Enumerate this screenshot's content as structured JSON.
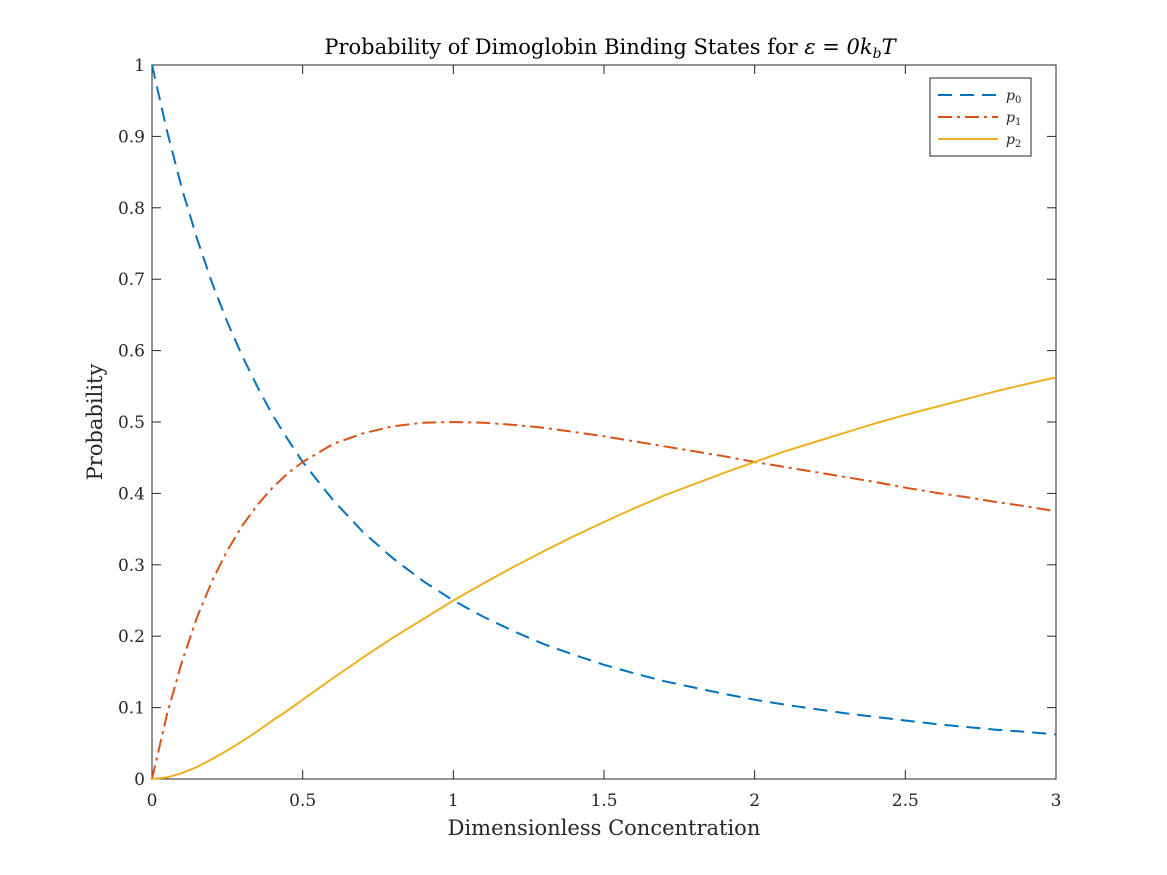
{
  "chart_data": {
    "type": "line",
    "title": "Probability of Dimoglobin Binding States for ε = 0k_bT",
    "title_parts": {
      "prefix": "Probability of Dimoglobin Binding States for ",
      "math": "ε = 0",
      "k": "k",
      "sub_b": "b",
      "T": "T"
    },
    "xlabel": "Dimensionless Concentration",
    "ylabel": "Probability",
    "xlim": [
      0,
      3
    ],
    "ylim": [
      0,
      1
    ],
    "xticks": [
      0,
      0.5,
      1,
      1.5,
      2,
      2.5,
      3
    ],
    "xtick_labels": [
      "0",
      "0.5",
      "1",
      "1.5",
      "2",
      "2.5",
      "3"
    ],
    "yticks": [
      0,
      0.1,
      0.2,
      0.3,
      0.4,
      0.5,
      0.6,
      0.7,
      0.8,
      0.9,
      1
    ],
    "ytick_labels": [
      "0",
      "0.1",
      "0.2",
      "0.3",
      "0.4",
      "0.5",
      "0.6",
      "0.7",
      "0.8",
      "0.9",
      "1"
    ],
    "grid": false,
    "legend_position": "top-right",
    "x": [
      0,
      0.05,
      0.1,
      0.15,
      0.2,
      0.25,
      0.3,
      0.35,
      0.4,
      0.45,
      0.5,
      0.6,
      0.7,
      0.8,
      0.9,
      1,
      1.1,
      1.2,
      1.3,
      1.4,
      1.5,
      1.6,
      1.7,
      1.8,
      1.9,
      2,
      2.1,
      2.2,
      2.3,
      2.4,
      2.5,
      2.6,
      2.7,
      2.8,
      2.9,
      3
    ],
    "series": [
      {
        "name": "p_0",
        "label_base": "p",
        "label_sub": "0",
        "color": "#0072BD",
        "style": "dashed",
        "values": [
          1,
          0.907,
          0.826,
          0.756,
          0.694,
          0.64,
          0.592,
          0.549,
          0.51,
          0.476,
          0.444,
          0.391,
          0.346,
          0.309,
          0.277,
          0.25,
          0.227,
          0.207,
          0.189,
          0.174,
          0.16,
          0.148,
          0.137,
          0.128,
          0.119,
          0.111,
          0.104,
          0.098,
          0.092,
          0.087,
          0.082,
          0.077,
          0.073,
          0.069,
          0.066,
          0.0625
        ]
      },
      {
        "name": "p_1",
        "label_base": "p",
        "label_sub": "1",
        "color": "#D95319",
        "style": "dashdot",
        "values": [
          0,
          0.091,
          0.165,
          0.227,
          0.278,
          0.32,
          0.355,
          0.384,
          0.408,
          0.428,
          0.444,
          0.469,
          0.484,
          0.494,
          0.499,
          0.5,
          0.499,
          0.496,
          0.492,
          0.486,
          0.48,
          0.473,
          0.466,
          0.459,
          0.452,
          0.444,
          0.437,
          0.43,
          0.423,
          0.416,
          0.408,
          0.401,
          0.395,
          0.388,
          0.382,
          0.375
        ]
      },
      {
        "name": "p_2",
        "label_base": "p",
        "label_sub": "2",
        "color": "#EDB120",
        "style": "solid",
        "values": [
          0,
          0.0023,
          0.0083,
          0.017,
          0.028,
          0.04,
          0.053,
          0.067,
          0.082,
          0.096,
          0.111,
          0.141,
          0.17,
          0.198,
          0.224,
          0.25,
          0.274,
          0.297,
          0.319,
          0.34,
          0.36,
          0.379,
          0.397,
          0.413,
          0.429,
          0.444,
          0.459,
          0.472,
          0.485,
          0.498,
          0.51,
          0.521,
          0.532,
          0.543,
          0.553,
          0.5625
        ]
      }
    ]
  }
}
